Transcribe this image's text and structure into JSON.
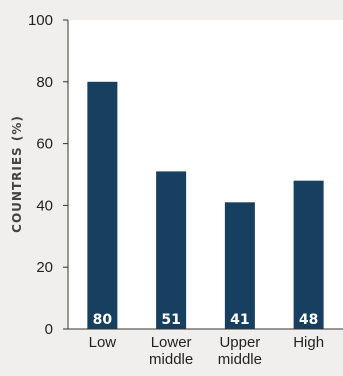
{
  "chart_data": {
    "type": "bar",
    "title": "",
    "xlabel": "",
    "ylabel": "COUNTRIES (%)",
    "ylim": [
      0,
      100
    ],
    "yticks": [
      0,
      20,
      40,
      60,
      80,
      100
    ],
    "categories": [
      [
        "Low"
      ],
      [
        "Lower",
        "middle"
      ],
      [
        "Upper",
        "middle"
      ],
      [
        "High"
      ]
    ],
    "values": [
      80,
      51,
      41,
      48
    ],
    "data_labels": [
      "80",
      "51",
      "41",
      "48"
    ],
    "grid": false,
    "colors": {
      "bar": "#173f5f",
      "plot_background": "#ffffff",
      "page_background": "#f0efee",
      "axis": "#333333"
    }
  }
}
